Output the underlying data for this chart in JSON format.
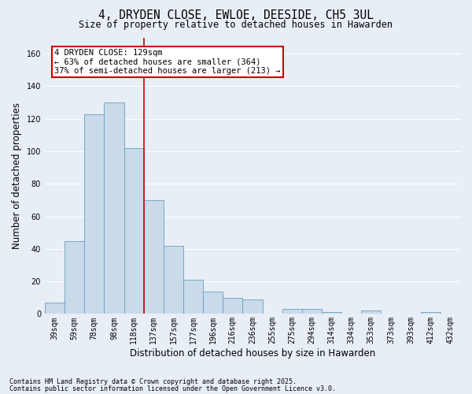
{
  "title": "4, DRYDEN CLOSE, EWLOE, DEESIDE, CH5 3UL",
  "subtitle": "Size of property relative to detached houses in Hawarden",
  "xlabel": "Distribution of detached houses by size in Hawarden",
  "ylabel": "Number of detached properties",
  "bar_color": "#c9daea",
  "bar_edge_color": "#6a9fc0",
  "vline_color": "#cc0000",
  "vline_x_index": 4,
  "categories": [
    "39sqm",
    "59sqm",
    "78sqm",
    "98sqm",
    "118sqm",
    "137sqm",
    "157sqm",
    "177sqm",
    "196sqm",
    "216sqm",
    "236sqm",
    "255sqm",
    "275sqm",
    "294sqm",
    "314sqm",
    "334sqm",
    "353sqm",
    "373sqm",
    "393sqm",
    "412sqm",
    "432sqm"
  ],
  "values": [
    7,
    45,
    123,
    130,
    102,
    70,
    42,
    21,
    14,
    10,
    9,
    0,
    3,
    3,
    1,
    0,
    2,
    0,
    0,
    1,
    0
  ],
  "ylim": [
    0,
    170
  ],
  "yticks": [
    0,
    20,
    40,
    60,
    80,
    100,
    120,
    140,
    160
  ],
  "annotation_text": "4 DRYDEN CLOSE: 129sqm\n← 63% of detached houses are smaller (364)\n37% of semi-detached houses are larger (213) →",
  "annotation_box_color": "#ffffff",
  "annotation_box_edge": "#cc0000",
  "footer1": "Contains HM Land Registry data © Crown copyright and database right 2025.",
  "footer2": "Contains public sector information licensed under the Open Government Licence v3.0.",
  "background_color": "#e8eef5",
  "grid_color": "#ffffff",
  "title_fontsize": 10.5,
  "subtitle_fontsize": 8.5,
  "tick_fontsize": 7,
  "label_fontsize": 8.5,
  "footer_fontsize": 6,
  "annotation_fontsize": 7.5
}
